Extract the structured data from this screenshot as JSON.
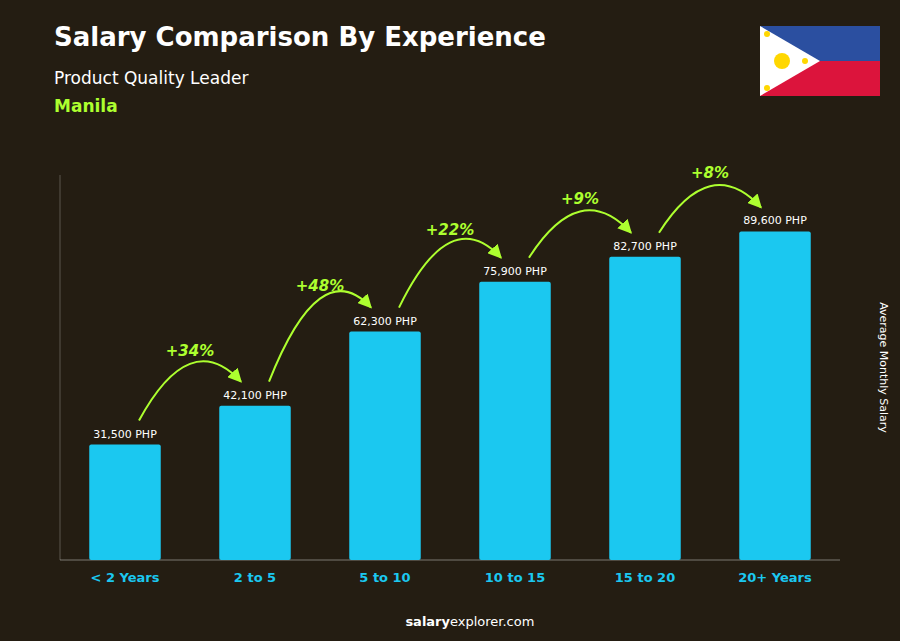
{
  "chart_data": {
    "type": "bar",
    "title": "Salary Comparison By Experience",
    "subtitle": "Product Quality Leader",
    "city": "Manila",
    "ylabel": "Average Monthly Salary",
    "categories": [
      "< 2 Years",
      "2 to 5",
      "5 to 10",
      "10 to 15",
      "15 to 20",
      "20+ Years"
    ],
    "values": [
      31500,
      42100,
      62300,
      75900,
      82700,
      89600
    ],
    "value_labels": [
      "31,500 PHP",
      "42,100 PHP",
      "62,300 PHP",
      "75,900 PHP",
      "82,700 PHP",
      "89,600 PHP"
    ],
    "annotations": [
      "+34%",
      "+48%",
      "+22%",
      "+9%",
      "+8%"
    ],
    "footer": [
      "salary",
      "explorer.com"
    ],
    "color": "#1BC8F0",
    "ylim": [
      0,
      105000
    ],
    "tick_labels": "x",
    "data_labels": true,
    "grid": false
  }
}
